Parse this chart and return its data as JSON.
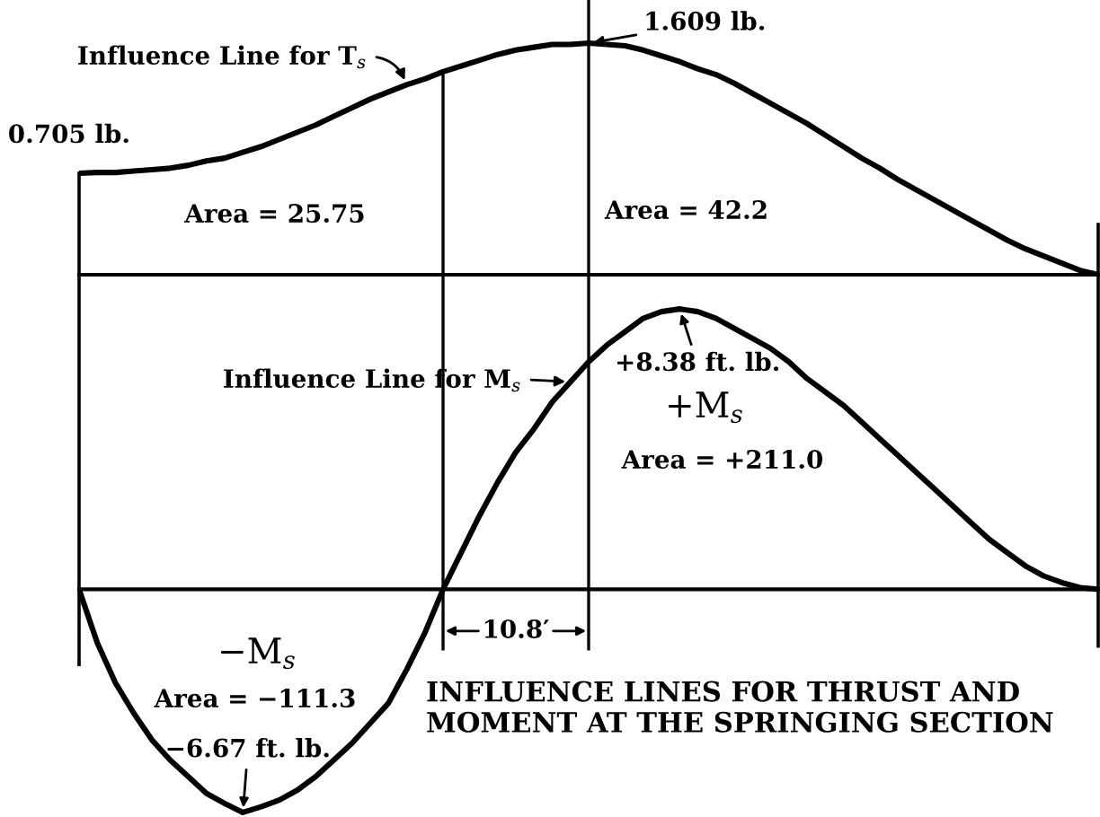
{
  "chart_data": [
    {
      "type": "line",
      "categories": [
        null,
        null,
        null,
        null,
        null,
        null,
        null,
        null,
        null,
        null,
        null,
        null,
        null,
        null,
        null,
        null,
        null,
        null,
        null,
        null,
        null,
        null,
        null,
        null,
        null,
        null,
        null,
        null,
        null,
        null,
        null,
        null,
        null,
        null,
        null,
        null,
        null,
        null,
        null,
        null,
        null,
        null,
        null,
        null,
        null,
        null,
        null,
        null,
        null,
        null,
        null,
        null,
        null,
        null,
        null,
        null,
        null
      ],
      "series": [
        {
          "name": "Influence Line for T$_{s}$",
          "color": "#000000",
          "values": [
            0.705,
            0.71,
            0.71,
            0.72,
            0.73,
            0.74,
            0.76,
            0.79,
            0.81,
            0.85,
            0.89,
            0.94,
            0.99,
            1.04,
            1.1,
            1.16,
            1.22,
            1.27,
            1.32,
            1.36,
            1.41,
            1.45,
            1.49,
            1.53,
            1.56,
            1.58,
            1.6,
            1.6,
            1.609,
            1.6,
            1.59,
            1.56,
            1.52,
            1.48,
            1.43,
            1.39,
            1.33,
            1.26,
            1.19,
            1.12,
            1.05,
            0.97,
            0.89,
            0.81,
            0.74,
            0.66,
            0.59,
            0.52,
            0.45,
            0.38,
            0.31,
            0.24,
            0.18,
            0.13,
            0.08,
            0.03,
            0
          ],
          "value_labels": [
            "0.705 lb.",
            null,
            null,
            null,
            null,
            null,
            null,
            null,
            null,
            null,
            null,
            null,
            null,
            null,
            null,
            null,
            null,
            null,
            null,
            null,
            null,
            null,
            null,
            null,
            null,
            null,
            null,
            null,
            "1.609 lb.",
            null,
            null,
            null,
            null,
            null,
            null,
            null,
            null,
            null,
            null,
            null,
            null,
            null,
            null,
            null,
            null,
            null,
            null,
            null,
            null,
            null,
            null,
            null,
            null,
            null,
            null,
            null,
            null
          ]
        }
      ],
      "tick_labels": false,
      "annotations": [
        "Area = 25.75",
        "Area = 42.2"
      ]
    },
    {
      "type": "line",
      "title": "INFLUENCE LINES FOR THRUST AND MOMENT AT THE SPRINGING SECTION",
      "categories": [
        null,
        null,
        null,
        null,
        null,
        null,
        null,
        null,
        null,
        null,
        null,
        null,
        null,
        null,
        null,
        null,
        null,
        null,
        null,
        null,
        null,
        null,
        null,
        null,
        null,
        null,
        null,
        null,
        null,
        null,
        null,
        null,
        null,
        null,
        null,
        null,
        null,
        null,
        null,
        null,
        null,
        null,
        null,
        null,
        null,
        null,
        null,
        null,
        null,
        null,
        null,
        null,
        null,
        null,
        null,
        null,
        null
      ],
      "series": [
        {
          "name": "Influence Line for M$_{s}$",
          "color": "#000000",
          "values": [
            0,
            -1.6,
            -2.8,
            -3.7,
            -4.5,
            -5.1,
            -5.6,
            -6.1,
            -6.4,
            -6.67,
            -6.5,
            -6.3,
            -6.0,
            -5.6,
            -5.1,
            -4.6,
            -4.0,
            -3.4,
            -2.4,
            -1.3,
            0,
            1.1,
            2.2,
            3.2,
            4.1,
            4.8,
            5.6,
            6.2,
            6.8,
            7.3,
            7.7,
            8.1,
            8.3,
            8.38,
            8.3,
            8.1,
            7.8,
            7.5,
            7.2,
            6.8,
            6.3,
            5.9,
            5.5,
            5.0,
            4.5,
            4.0,
            3.5,
            3.0,
            2.5,
            2.0,
            1.5,
            1.1,
            0.7,
            0.4,
            0.2,
            0.05,
            0
          ],
          "value_labels": [
            null,
            null,
            null,
            null,
            null,
            null,
            null,
            null,
            null,
            "−6.67 ft. lb.",
            null,
            null,
            null,
            null,
            null,
            null,
            null,
            null,
            null,
            null,
            null,
            null,
            null,
            null,
            null,
            null,
            null,
            null,
            null,
            null,
            null,
            null,
            null,
            "+8.38 ft. lb.",
            null,
            null,
            null,
            null,
            null,
            null,
            null,
            null,
            null,
            null,
            null,
            null,
            null,
            null,
            null,
            null,
            null,
            null,
            null,
            null,
            null,
            null,
            null
          ]
        }
      ],
      "tick_labels": false,
      "annotations": [
        "+M$_{s}$",
        "Area = +211.0",
        "−M$_{s}$",
        "Area = −111.3",
        "10.8′"
      ]
    }
  ]
}
